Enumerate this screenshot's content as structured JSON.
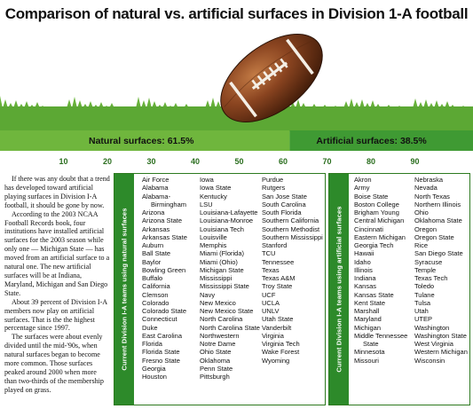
{
  "title": "Comparison of natural vs. artificial surfaces in Division 1-A football",
  "chart_data": {
    "type": "bar",
    "axis": {
      "min": 0,
      "max": 100,
      "ticks": [
        10,
        20,
        30,
        40,
        50,
        60,
        70,
        80,
        90
      ]
    },
    "segments": [
      {
        "label": "Natural surfaces: 61.5%",
        "value": 61.5
      },
      {
        "label": "Artificial surfaces: 38.5%",
        "value": 38.5
      }
    ]
  },
  "colors": {
    "green": "#2d8a2a",
    "green_light": "#7bc04a",
    "axis_text": "#2a6e1e",
    "football": "#7a3a1a"
  },
  "intro_paragraphs": [
    "If there was any doubt that a trend has developed toward artificial playing surfaces in Division I-A football, it should be gone by now.",
    "According to the 2003 NCAA Football Records book, four institutions have installed artificial surfaces for the 2003 season while only one — Michigan State — has moved from an artificial surface to a natural one. The new artificial surfaces will be at Indiana, Maryland, Michigan and San Diego State.",
    "About 39 percent of Division I-A members now play on artificial surfaces. That is the the highest percentage since 1997.",
    "The surfaces were about evenly divided until the mid-'90s, when natural surfaces began to become more common. Those surfaces peaked around 2000 when more than two-thirds of the membership played on grass."
  ],
  "natural_panel": {
    "label": "Current Division I-A teams using natural surfaces",
    "columns": [
      [
        "Air Force",
        "Alabama",
        "Alabama-",
        "Birmingham",
        "Arizona",
        "Arizona State",
        "Arkansas",
        "Arkansas State",
        "Auburn",
        "Ball State",
        "Baylor",
        "Bowling Green",
        "Buffalo",
        "California",
        "Clemson",
        "Colorado",
        "Colorado State",
        "Connecticut",
        "Duke",
        "East Carolina",
        "Florida",
        "Florida State",
        "Fresno State",
        "Georgia",
        "Houston"
      ],
      [
        "Iowa",
        "Iowa State",
        "Kentucky",
        "LSU",
        "Louisiana-Lafayette",
        "Louisiana-Monroe",
        "Louisiana Tech",
        "Louisville",
        "Memphis",
        "Miami (Florida)",
        "Miami (Ohio)",
        "Michigan State",
        "Mississippi",
        "Mississippi State",
        "Navy",
        "New Mexico",
        "New Mexico State",
        "North Carolina",
        "North Carolina State",
        "Northwestern",
        "Notre Dame",
        "Ohio State",
        "Oklahoma",
        "Penn State",
        "Pittsburgh"
      ],
      [
        "Purdue",
        "Rutgers",
        "San Jose State",
        "South Carolina",
        "South Florida",
        "Southern California",
        "Southern Methodist",
        "Southern Mississippi",
        "Stanford",
        "TCU",
        "Tennessee",
        "Texas",
        "Texas A&M",
        "Troy State",
        "UCF",
        "UCLA",
        "UNLV",
        "Utah State",
        "Vanderbilt",
        "Virginia",
        "Virginia Tech",
        "Wake Forest",
        "Wyoming"
      ]
    ]
  },
  "artificial_panel": {
    "label": "Current Division I-A teams using artificial surfaces",
    "columns": [
      [
        "Akron",
        "Army",
        "Boise State",
        "Boston College",
        "Brigham Young",
        "Central Michigan",
        "Cincinnati",
        "Eastern Michigan",
        "Georgia Tech",
        "Hawaii",
        "Idaho",
        "Illinois",
        "Indiana",
        "Kansas",
        "Kansas State",
        "Kent State",
        "Marshall",
        "Maryland",
        "Michigan",
        "Middle Tennessee",
        "State",
        "Minnesota",
        "Missouri"
      ],
      [
        "Nebraska",
        "Nevada",
        "North Texas",
        "Northern Illinois",
        "Ohio",
        "Oklahoma State",
        "Oregon",
        "Oregon State",
        "Rice",
        "San Diego State",
        "Syracuse",
        "Temple",
        "Texas Tech",
        "Toledo",
        "Tulane",
        "Tulsa",
        "Utah",
        "UTEP",
        "Washington",
        "Washington State",
        "West Virginia",
        "Western Michigan",
        "Wisconsin"
      ]
    ]
  }
}
